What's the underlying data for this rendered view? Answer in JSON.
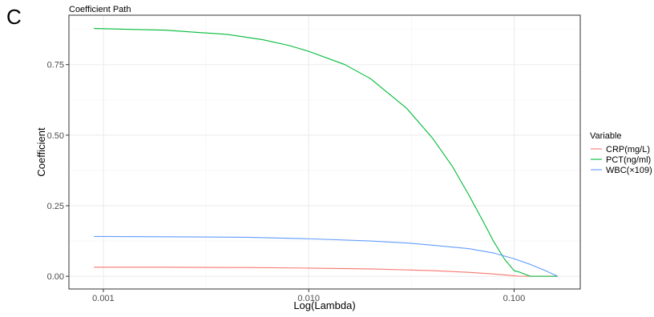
{
  "panel_label": "C",
  "chart_data": {
    "type": "line",
    "title": "Coefficient Path",
    "xlabel": "Log(Lambda)",
    "ylabel": "Coefficient",
    "x_scale": "log10",
    "xlim": [
      0.00068,
      0.21
    ],
    "ylim": [
      -0.045,
      0.925
    ],
    "x_ticks": [
      0.001,
      0.01,
      0.1
    ],
    "x_tick_labels": [
      "0.001",
      "0.010",
      "0.100"
    ],
    "y_ticks": [
      0,
      0.25,
      0.5,
      0.75
    ],
    "y_tick_labels": [
      "0.00",
      "0.25",
      "0.50",
      "0.75"
    ],
    "grid": true,
    "legend": {
      "title": "Variable",
      "position": "right"
    },
    "series": [
      {
        "name": "CRP(mg/L)",
        "color": "#F8766D",
        "x": [
          0.0009,
          0.002,
          0.005,
          0.01,
          0.02,
          0.04,
          0.06,
          0.08,
          0.1,
          0.105,
          0.12,
          0.163
        ],
        "y": [
          0.032,
          0.032,
          0.031,
          0.029,
          0.026,
          0.02,
          0.014,
          0.008,
          0.002,
          0,
          0,
          0
        ]
      },
      {
        "name": "PCT(ng/ml)",
        "color": "#00BA38",
        "x": [
          0.0009,
          0.002,
          0.004,
          0.006,
          0.008,
          0.01,
          0.015,
          0.02,
          0.03,
          0.04,
          0.05,
          0.06,
          0.07,
          0.08,
          0.09,
          0.1,
          0.106,
          0.12,
          0.14,
          0.163
        ],
        "y": [
          0.878,
          0.872,
          0.857,
          0.838,
          0.818,
          0.797,
          0.75,
          0.7,
          0.595,
          0.49,
          0.39,
          0.29,
          0.2,
          0.12,
          0.06,
          0.02,
          0.015,
          0,
          0,
          0
        ]
      },
      {
        "name": "WBC(×109)",
        "color": "#619CFF",
        "x": [
          0.0009,
          0.002,
          0.005,
          0.01,
          0.02,
          0.03,
          0.04,
          0.06,
          0.08,
          0.1,
          0.12,
          0.14,
          0.163
        ],
        "y": [
          0.141,
          0.14,
          0.138,
          0.133,
          0.125,
          0.118,
          0.11,
          0.098,
          0.082,
          0.062,
          0.042,
          0.022,
          0
        ]
      }
    ]
  }
}
